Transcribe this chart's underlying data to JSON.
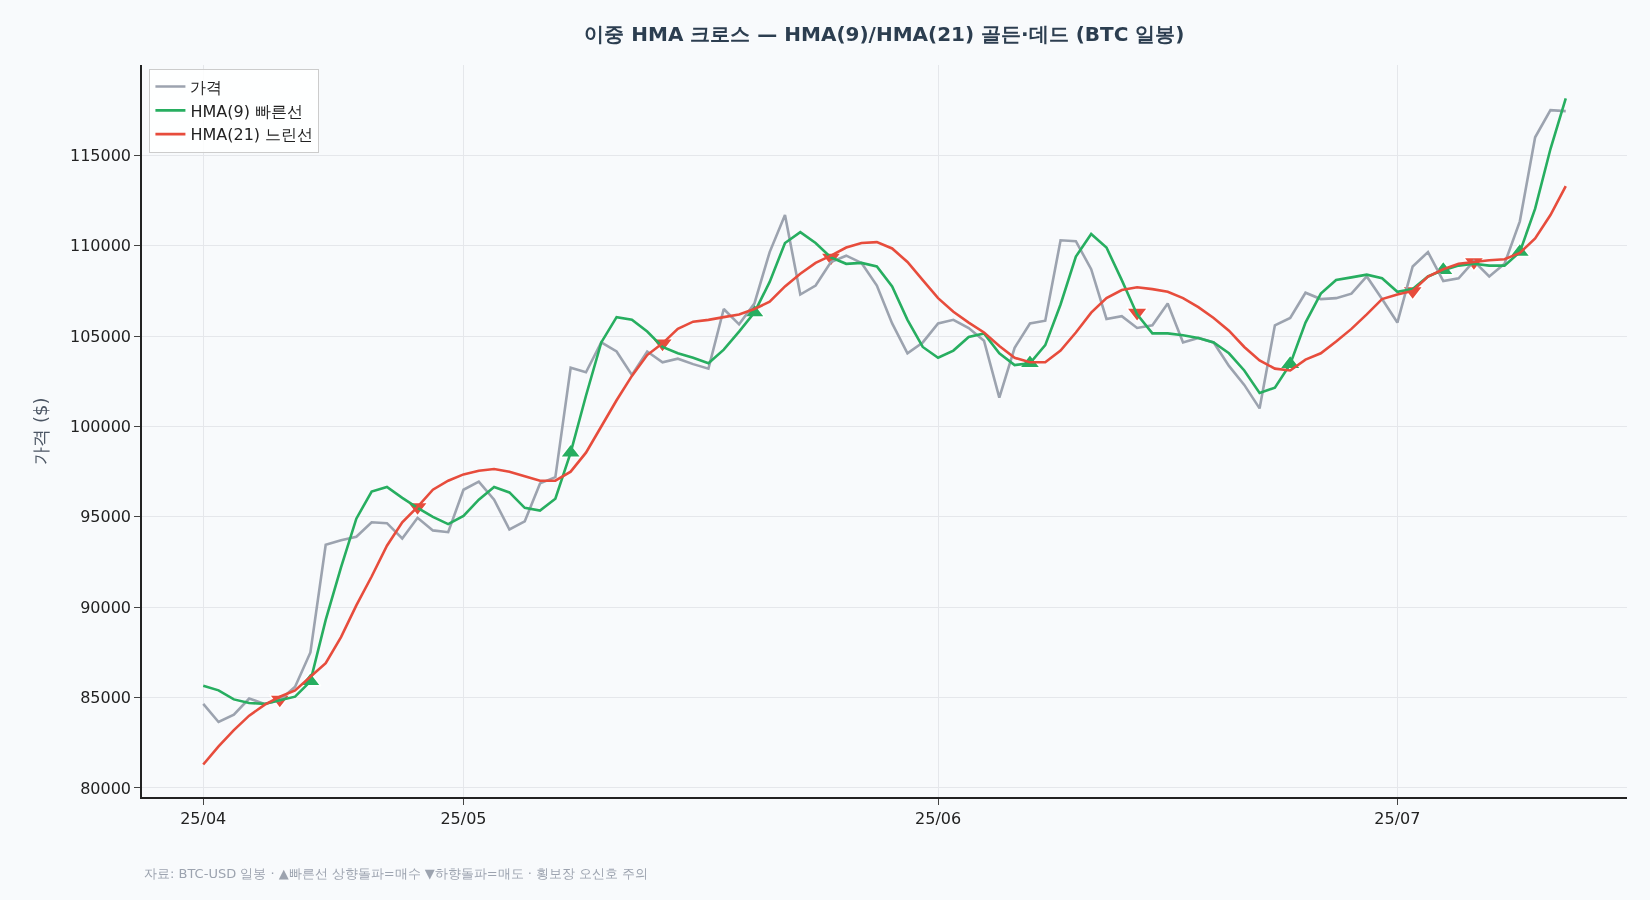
{
  "chart_data": {
    "type": "line",
    "title": "이중 HMA 크로스 — HMA(9)/HMA(21) 골든·데드 (BTC 일봉)",
    "ylabel": "가격 ($)",
    "x": [
      "--04-14",
      "--04-15",
      "--04-16",
      "--04-17",
      "--04-18",
      "--04-19",
      "--04-20",
      "--04-21",
      "--04-22",
      "--04-23",
      "--04-24",
      "--04-25",
      "--04-26",
      "--04-27",
      "--04-28",
      "--04-29",
      "--04-30",
      "--05-01",
      "--05-02",
      "--05-03",
      "--05-04",
      "--05-05",
      "--05-06",
      "--05-07",
      "--05-08",
      "--05-09",
      "--05-10",
      "--05-11",
      "--05-12",
      "--05-13",
      "--05-14",
      "--05-15",
      "--05-16",
      "--05-17",
      "--05-18",
      "--05-19",
      "--05-20",
      "--05-21",
      "--05-22",
      "--05-23",
      "--05-24",
      "--05-25",
      "--05-26",
      "--05-27",
      "--05-28",
      "--05-29",
      "--05-30",
      "--05-31",
      "--06-01",
      "--06-02",
      "--06-03",
      "--06-04",
      "--06-05",
      "--06-06",
      "--06-07",
      "--06-08",
      "--06-09",
      "--06-10",
      "--06-11",
      "--06-12",
      "--06-13",
      "--06-14",
      "--06-15",
      "--06-16",
      "--06-17",
      "--06-18",
      "--06-19",
      "--06-20",
      "--06-21",
      "--06-22",
      "--06-23",
      "--06-24",
      "--06-25",
      "--06-26",
      "--06-27",
      "--06-28",
      "--06-29",
      "--06-30",
      "--07-01",
      "--07-02",
      "--07-03",
      "--07-04",
      "--07-05",
      "--07-06",
      "--07-07",
      "--07-08",
      "--07-09",
      "--07-10",
      "--07-11",
      "--07-12"
    ],
    "xlim": [
      "--04-10",
      "--07-16"
    ],
    "xticks": [
      {
        "value": "--04-14",
        "label": "25/04"
      },
      {
        "value": "--05-01",
        "label": "25/05"
      },
      {
        "value": "--06-01",
        "label": "25/06"
      },
      {
        "value": "--07-01",
        "label": "25/07"
      }
    ],
    "ylim": [
      79500,
      120000
    ],
    "yticks": [
      80000,
      85000,
      90000,
      95000,
      100000,
      105000,
      110000,
      115000
    ],
    "grid": true,
    "legend": "top left",
    "marker": "none",
    "line_style": "solid",
    "series": [
      {
        "name": "가격",
        "color": "#9ca3af",
        "values": [
          84650,
          83650,
          84050,
          84950,
          84650,
          84850,
          85600,
          87500,
          93450,
          93700,
          93900,
          94700,
          94650,
          93800,
          94950,
          94250,
          94150,
          96500,
          96950,
          95950,
          94300,
          94750,
          96850,
          97200,
          103250,
          103000,
          104650,
          104150,
          102850,
          104150,
          103550,
          103750,
          103450,
          103200,
          106500,
          105650,
          106800,
          109650,
          111700,
          107300,
          107800,
          109100,
          109450,
          109050,
          107800,
          105700,
          104050,
          104650,
          105700,
          105900,
          105450,
          104750,
          101600,
          104350,
          105700,
          105850,
          110300,
          110250,
          108700,
          105950,
          106100,
          105450,
          105600,
          106800,
          104650,
          104900,
          104650,
          103350,
          102300,
          101000,
          105600,
          106000,
          107400,
          107050,
          107100,
          107350,
          108300,
          107050,
          105750,
          108850,
          109650,
          108050,
          108200,
          109150,
          108300,
          109000,
          111350,
          116000,
          117500,
          117450
        ]
      },
      {
        "name": "HMA(9) 빠른선",
        "color": "#27ae60",
        "values": [
          85650,
          85400,
          84900,
          84700,
          84650,
          84850,
          85050,
          85900,
          89300,
          92200,
          94900,
          96400,
          96650,
          96050,
          95500,
          95000,
          94600,
          95050,
          95950,
          96650,
          96350,
          95500,
          95350,
          96000,
          98550,
          101700,
          104650,
          106050,
          105900,
          105250,
          104400,
          104050,
          103800,
          103500,
          104250,
          105250,
          106300,
          108000,
          110150,
          110750,
          110150,
          109350,
          109000,
          109050,
          108850,
          107750,
          105900,
          104400,
          103800,
          104200,
          104950,
          105150,
          104050,
          103400,
          103500,
          104500,
          106750,
          109400,
          110650,
          109900,
          108100,
          106200,
          105150,
          105150,
          105050,
          104900,
          104650,
          104050,
          103100,
          101850,
          102150,
          103450,
          105750,
          107350,
          108100,
          108250,
          108400,
          108200,
          107450,
          107600,
          108300,
          108650,
          108900,
          109000,
          108900,
          108900,
          109650,
          112050,
          115350,
          118150
        ]
      },
      {
        "name": "HMA(21) 느린선",
        "color": "#e74c3c",
        "values": [
          81300,
          82300,
          83200,
          84000,
          84600,
          85050,
          85400,
          86150,
          86900,
          88350,
          90100,
          91700,
          93400,
          94700,
          95550,
          96500,
          97000,
          97350,
          97550,
          97650,
          97500,
          97250,
          97000,
          97000,
          97500,
          98550,
          100000,
          101450,
          102800,
          103950,
          104600,
          105400,
          105800,
          105900,
          106050,
          106200,
          106500,
          106900,
          107750,
          108450,
          109050,
          109450,
          109900,
          110150,
          110200,
          109850,
          109100,
          108100,
          107100,
          106350,
          105750,
          105200,
          104450,
          103800,
          103550,
          103550,
          104200,
          105200,
          106300,
          107100,
          107550,
          107700,
          107600,
          107450,
          107100,
          106600,
          106000,
          105300,
          104400,
          103650,
          103200,
          103100,
          103700,
          104050,
          104700,
          105400,
          106200,
          107050,
          107300,
          107500,
          108300,
          108700,
          109000,
          109100,
          109200,
          109250,
          109600,
          110400,
          111700,
          113300
        ]
      },
      {
        "type": "scatter",
        "marker": "triangle",
        "color": "#27ae60",
        "x": [
          "--04-21",
          "--05-08",
          "--05-20",
          "--06-07",
          "--06-24",
          "--07-04",
          "--07-09"
        ],
        "values": [
          85900,
          98550,
          106300,
          103500,
          103450,
          108650,
          109650
        ]
      },
      {
        "type": "scatter",
        "marker": "triangle-down",
        "color": "#e74c3c",
        "x": [
          "--04-19",
          "--04-28",
          "--05-14",
          "--05-25",
          "--06-14",
          "--07-02",
          "--07-06"
        ],
        "values": [
          84900,
          95550,
          104600,
          109350,
          106300,
          107500,
          109100
        ]
      }
    ],
    "annotations": [
      "자료: BTC-USD 일봉 · ▲빠른선 상향돌파=매수 ▼하향돌파=매도 · 횡보장 오신호 주의"
    ]
  }
}
